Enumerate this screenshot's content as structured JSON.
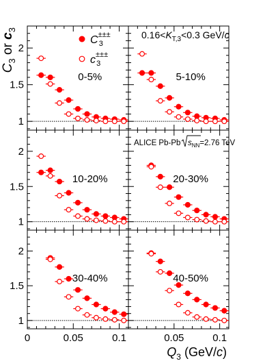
{
  "figure": {
    "y_axis_label": {
      "main": "C",
      "sub1": "3",
      "or": " or ",
      "main2": "c",
      "sub2": "3"
    },
    "x_axis_label": {
      "main": "Q",
      "sub": "3",
      "unit": " (GeV/",
      "unit_c": "c",
      "unit_end": ")"
    },
    "x_tick_labels": [
      "0",
      "0.05",
      "0.1"
    ],
    "y_tick_labels": [
      "1",
      "1.5",
      "2"
    ],
    "legend": [
      {
        "symbol": "filled-circle",
        "label_main": "C",
        "label_sub": "3",
        "label_sup": "±±±"
      },
      {
        "symbol": "open-circle",
        "label_main": "c",
        "label_sub": "3",
        "label_sup": "±±±"
      }
    ],
    "kt_range": {
      "prefix": "0.16<",
      "main": "K",
      "sub": "T,3",
      "suffix": "<0.3 GeV/",
      "suffix_c": "c"
    },
    "experiment": {
      "text": "ALICE Pb-Pb",
      "sqrt_sub": "NN",
      "energy": "=2.76 TeV"
    },
    "colors": {
      "marker": "#ff0000",
      "axis": "#000000",
      "reference_line": "#000000"
    }
  },
  "chart_data": [
    {
      "type": "scatter",
      "panel": "0-5%",
      "label": "0-5%",
      "xlim": [
        0,
        0.11
      ],
      "ylim": [
        0.88,
        2.3
      ],
      "reference_y": 1,
      "series": [
        {
          "name": "C3±±±",
          "marker": "filled",
          "x": [
            0.015,
            0.025,
            0.035,
            0.045,
            0.055,
            0.065,
            0.075,
            0.085,
            0.095,
            0.105
          ],
          "y": [
            1.63,
            1.6,
            1.43,
            1.29,
            1.17,
            1.1,
            1.06,
            1.04,
            1.03,
            1.02
          ]
        },
        {
          "name": "c3±±±",
          "marker": "open",
          "x": [
            0.015,
            0.025,
            0.035,
            0.045,
            0.055,
            0.065,
            0.075,
            0.085,
            0.095,
            0.105
          ],
          "y": [
            1.86,
            1.51,
            1.25,
            1.1,
            1.04,
            1.02,
            1.01,
            1.0,
            1.0,
            1.0
          ]
        }
      ]
    },
    {
      "type": "scatter",
      "panel": "5-10%",
      "label": "5-10%",
      "xlim": [
        0,
        0.11
      ],
      "ylim": [
        0.88,
        2.3
      ],
      "reference_y": 1,
      "series": [
        {
          "name": "C3±±±",
          "marker": "filled",
          "x": [
            0.015,
            0.025,
            0.035,
            0.045,
            0.055,
            0.065,
            0.075,
            0.085,
            0.095,
            0.105
          ],
          "y": [
            1.66,
            1.66,
            1.48,
            1.32,
            1.2,
            1.12,
            1.07,
            1.05,
            1.04,
            1.02
          ]
        },
        {
          "name": "c3±±±",
          "marker": "open",
          "x": [
            0.015,
            0.025,
            0.035,
            0.045,
            0.055,
            0.065,
            0.075,
            0.085,
            0.095,
            0.105
          ],
          "y": [
            1.92,
            1.57,
            1.28,
            1.13,
            1.06,
            1.03,
            1.01,
            1.0,
            1.0,
            1.0
          ]
        }
      ]
    },
    {
      "type": "scatter",
      "panel": "10-20%",
      "label": "10-20%",
      "xlim": [
        0,
        0.11
      ],
      "ylim": [
        0.88,
        2.3
      ],
      "reference_y": 1,
      "series": [
        {
          "name": "C3±±±",
          "marker": "filled",
          "x": [
            0.015,
            0.025,
            0.035,
            0.045,
            0.055,
            0.065,
            0.075,
            0.085,
            0.095,
            0.105
          ],
          "y": [
            1.7,
            1.73,
            1.57,
            1.41,
            1.27,
            1.17,
            1.11,
            1.08,
            1.06,
            1.04
          ]
        },
        {
          "name": "c3±±±",
          "marker": "open",
          "x": [
            0.015,
            0.025,
            0.035,
            0.045,
            0.055,
            0.065,
            0.075,
            0.085,
            0.095,
            0.105
          ],
          "y": [
            1.93,
            1.65,
            1.37,
            1.17,
            1.08,
            1.04,
            1.02,
            1.01,
            1.0,
            1.0
          ]
        }
      ]
    },
    {
      "type": "scatter",
      "panel": "20-30%",
      "label": "20-30%",
      "xlim": [
        0,
        0.11
      ],
      "ylim": [
        0.88,
        2.3
      ],
      "reference_y": 1,
      "series": [
        {
          "name": "C3±±±",
          "marker": "filled",
          "x": [
            0.025,
            0.035,
            0.045,
            0.055,
            0.065,
            0.075,
            0.085,
            0.095,
            0.105
          ],
          "y": [
            1.8,
            1.64,
            1.49,
            1.35,
            1.24,
            1.16,
            1.1,
            1.07,
            1.04
          ]
        },
        {
          "name": "c3±±±",
          "marker": "open",
          "x": [
            0.025,
            0.035,
            0.045,
            0.055,
            0.065,
            0.075,
            0.085,
            0.095,
            0.105
          ],
          "y": [
            1.78,
            1.49,
            1.26,
            1.12,
            1.06,
            1.03,
            1.01,
            1.0,
            1.0
          ]
        }
      ]
    },
    {
      "type": "scatter",
      "panel": "30-40%",
      "label": "30-40%",
      "xlim": [
        0,
        0.11
      ],
      "ylim": [
        0.88,
        2.3
      ],
      "reference_y": 1,
      "series": [
        {
          "name": "C3±±±",
          "marker": "filled",
          "x": [
            0.025,
            0.035,
            0.045,
            0.055,
            0.065,
            0.075,
            0.085,
            0.095,
            0.105
          ],
          "y": [
            1.9,
            1.77,
            1.6,
            1.44,
            1.32,
            1.23,
            1.17,
            1.12,
            1.09
          ]
        },
        {
          "name": "c3±±±",
          "marker": "open",
          "x": [
            0.025,
            0.035,
            0.045,
            0.055,
            0.065,
            0.075,
            0.085,
            0.095,
            0.105
          ],
          "y": [
            1.88,
            1.56,
            1.34,
            1.17,
            1.08,
            1.04,
            1.02,
            1.01,
            1.0
          ]
        }
      ]
    },
    {
      "type": "scatter",
      "panel": "40-50%",
      "label": "40-50%",
      "xlim": [
        0,
        0.11
      ],
      "ylim": [
        0.88,
        2.3
      ],
      "reference_y": 1,
      "series": [
        {
          "name": "C3±±±",
          "marker": "filled",
          "x": [
            0.025,
            0.035,
            0.045,
            0.055,
            0.065,
            0.075,
            0.085,
            0.095,
            0.105
          ],
          "y": [
            1.97,
            1.85,
            1.68,
            1.51,
            1.39,
            1.3,
            1.23,
            1.18,
            1.14
          ]
        },
        {
          "name": "c3±±±",
          "marker": "open",
          "x": [
            0.025,
            0.035,
            0.045,
            0.055,
            0.065,
            0.075,
            0.085,
            0.095,
            0.105
          ],
          "y": [
            1.96,
            1.7,
            1.43,
            1.23,
            1.11,
            1.05,
            1.02,
            1.01,
            1.0
          ]
        }
      ]
    }
  ]
}
